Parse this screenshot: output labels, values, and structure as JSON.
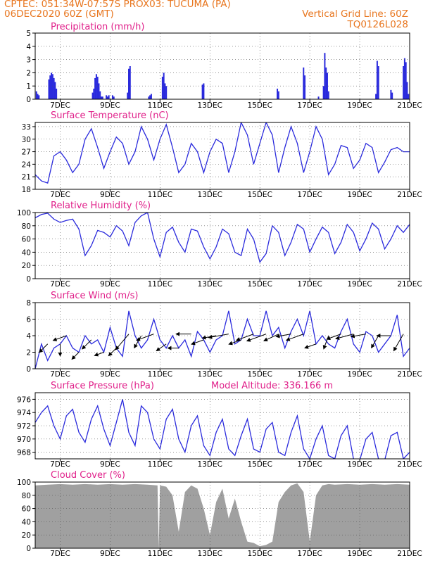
{
  "header": {
    "line1_left": "CPTEC:   051:34W-07:57S   PROX03: TUCUMA (PA)",
    "line2_left": "06DEC2020 60Z (GMT)",
    "line2_right": "Vertical Grid Line: 60Z",
    "line3_right": "TQ0126L028"
  },
  "colors": {
    "header": "#e8761f",
    "title": "#e0208a",
    "series": "#2a2add",
    "cloud": "#a0a0a0",
    "arrow": "#000000"
  },
  "x_axis": {
    "ticks": [
      "7DEC",
      "9DEC",
      "11DEC",
      "13DEC",
      "15DEC",
      "17DEC",
      "19DEC",
      "21DEC"
    ],
    "tick_days": [
      7,
      9,
      11,
      13,
      15,
      17,
      19,
      21
    ],
    "range_days": [
      6.0,
      21.0
    ]
  },
  "chart_data": [
    {
      "id": "precip",
      "type": "bar",
      "title": "Precipitation (mm/h)",
      "ylim": [
        0,
        5
      ],
      "yticks": [
        0,
        1,
        2,
        3,
        4,
        5
      ],
      "x": [
        6.05,
        6.1,
        6.15,
        6.55,
        6.6,
        6.65,
        6.7,
        6.75,
        6.8,
        6.85,
        8.3,
        8.35,
        8.4,
        8.45,
        8.5,
        8.55,
        8.6,
        8.65,
        8.7,
        8.85,
        8.9,
        8.95,
        9.1,
        9.15,
        9.7,
        9.75,
        9.8,
        10.55,
        10.6,
        10.65,
        11.1,
        11.15,
        11.2,
        11.25,
        12.7,
        12.75,
        15.7,
        15.75,
        16.75,
        16.8,
        17.35,
        17.55,
        17.6,
        17.65,
        17.7,
        17.75,
        19.65,
        19.7,
        19.75,
        20.25,
        20.3,
        20.75,
        20.8,
        20.85,
        20.9,
        20.95
      ],
      "values": [
        0.6,
        0.4,
        0.3,
        1.5,
        1.8,
        2.0,
        1.9,
        1.6,
        1.3,
        0.8,
        0.5,
        0.8,
        1.6,
        1.9,
        1.7,
        1.2,
        0.6,
        0.2,
        0.2,
        0.3,
        0.2,
        0.3,
        0.3,
        0.2,
        0.5,
        2.3,
        2.5,
        0.2,
        0.3,
        0.4,
        1.7,
        2.0,
        1.2,
        1.0,
        1.1,
        1.2,
        0.8,
        0.6,
        2.4,
        1.8,
        0.2,
        1.0,
        3.5,
        2.4,
        2.0,
        0.6,
        0.4,
        2.9,
        2.5,
        0.7,
        0.5,
        2.5,
        3.1,
        2.8,
        1.3,
        0.4
      ]
    },
    {
      "id": "temp",
      "type": "line",
      "title": "Surface Temperature (nC)",
      "ylim": [
        18,
        34
      ],
      "yticks": [
        18,
        21,
        24,
        27,
        30,
        33
      ],
      "x": [
        6.0,
        6.25,
        6.5,
        6.75,
        7.0,
        7.25,
        7.5,
        7.75,
        8.0,
        8.25,
        8.5,
        8.75,
        9.0,
        9.25,
        9.5,
        9.75,
        10.0,
        10.25,
        10.5,
        10.75,
        11.0,
        11.25,
        11.5,
        11.75,
        12.0,
        12.25,
        12.5,
        12.75,
        13.0,
        13.25,
        13.5,
        13.75,
        14.0,
        14.25,
        14.5,
        14.75,
        15.0,
        15.25,
        15.5,
        15.75,
        16.0,
        16.25,
        16.5,
        16.75,
        17.0,
        17.25,
        17.5,
        17.75,
        18.0,
        18.25,
        18.5,
        18.75,
        19.0,
        19.25,
        19.5,
        19.75,
        20.0,
        20.25,
        20.5,
        20.75,
        21.0
      ],
      "values": [
        21.5,
        20.0,
        19.5,
        26.0,
        27.0,
        25.0,
        22.0,
        24.0,
        30.0,
        32.5,
        28.0,
        23.0,
        27.0,
        30.5,
        29.0,
        24.0,
        27.0,
        33.0,
        30.0,
        25.0,
        30.0,
        33.5,
        28.0,
        22.0,
        24.0,
        29.0,
        27.0,
        22.0,
        27.0,
        30.0,
        29.0,
        22.0,
        27.0,
        34.0,
        31.0,
        24.0,
        29.0,
        34.0,
        31.0,
        22.0,
        28.0,
        33.0,
        29.0,
        22.0,
        27.0,
        33.0,
        30.0,
        21.5,
        24.0,
        28.5,
        28.0,
        23.0,
        25.0,
        29.0,
        28.0,
        22.0,
        24.5,
        27.5,
        28.0,
        27.0,
        27.0
      ]
    },
    {
      "id": "rh",
      "type": "line",
      "title": "Relative Humidity (%)",
      "ylim": [
        0,
        100
      ],
      "yticks": [
        0,
        20,
        40,
        60,
        80,
        100
      ],
      "x": [
        6.0,
        6.25,
        6.5,
        6.75,
        7.0,
        7.25,
        7.5,
        7.75,
        8.0,
        8.25,
        8.5,
        8.75,
        9.0,
        9.25,
        9.5,
        9.75,
        10.0,
        10.25,
        10.5,
        10.75,
        11.0,
        11.25,
        11.5,
        11.75,
        12.0,
        12.25,
        12.5,
        12.75,
        13.0,
        13.25,
        13.5,
        13.75,
        14.0,
        14.25,
        14.5,
        14.75,
        15.0,
        15.25,
        15.5,
        15.75,
        16.0,
        16.25,
        16.5,
        16.75,
        17.0,
        17.25,
        17.5,
        17.75,
        18.0,
        18.25,
        18.5,
        18.75,
        19.0,
        19.25,
        19.5,
        19.75,
        20.0,
        20.25,
        20.5,
        20.75,
        21.0
      ],
      "values": [
        92,
        97,
        99,
        90,
        85,
        88,
        90,
        75,
        35,
        50,
        73,
        70,
        63,
        80,
        72,
        50,
        85,
        95,
        100,
        60,
        33,
        70,
        78,
        55,
        40,
        75,
        72,
        48,
        30,
        48,
        75,
        68,
        40,
        35,
        75,
        60,
        25,
        38,
        80,
        70,
        35,
        55,
        82,
        75,
        40,
        60,
        78,
        70,
        38,
        55,
        82,
        70,
        42,
        60,
        84,
        75,
        45,
        60,
        80,
        70,
        82
      ]
    },
    {
      "id": "wind",
      "type": "line",
      "title": "Surface Wind (m/s)",
      "ylim": [
        0,
        8
      ],
      "yticks": [
        0,
        2,
        4,
        6,
        8
      ],
      "x": [
        6.0,
        6.25,
        6.5,
        6.75,
        7.0,
        7.25,
        7.5,
        7.75,
        8.0,
        8.25,
        8.5,
        8.75,
        9.0,
        9.25,
        9.5,
        9.75,
        10.0,
        10.25,
        10.5,
        10.75,
        11.0,
        11.25,
        11.5,
        11.75,
        12.0,
        12.25,
        12.5,
        12.75,
        13.0,
        13.25,
        13.5,
        13.75,
        14.0,
        14.25,
        14.5,
        14.75,
        15.0,
        15.25,
        15.5,
        15.75,
        16.0,
        16.25,
        16.5,
        16.75,
        17.0,
        17.25,
        17.5,
        17.75,
        18.0,
        18.25,
        18.5,
        18.75,
        19.0,
        19.25,
        19.5,
        19.75,
        20.0,
        20.25,
        20.5,
        20.75,
        21.0
      ],
      "values": [
        0.0,
        3.0,
        1.0,
        2.5,
        3.0,
        4.0,
        2.5,
        2.0,
        4.0,
        3.0,
        3.5,
        2.0,
        5.0,
        2.5,
        1.5,
        7.0,
        4.0,
        2.5,
        3.5,
        6.0,
        3.5,
        2.5,
        4.0,
        2.5,
        3.5,
        1.5,
        4.5,
        3.5,
        2.0,
        3.5,
        4.0,
        7.0,
        3.0,
        3.5,
        6.0,
        4.0,
        4.0,
        7.0,
        4.0,
        5.0,
        2.5,
        4.5,
        6.0,
        4.0,
        7.0,
        3.0,
        4.0,
        3.0,
        2.5,
        4.5,
        6.0,
        3.0,
        2.0,
        4.5,
        4.0,
        2.0,
        3.0,
        4.0,
        6.5,
        1.5,
        2.5
      ]
    },
    {
      "id": "pres",
      "type": "line",
      "title": "Surface Pressure (hPa)",
      "annotation": "Model Altitude: 336.166 m",
      "ylim": [
        967,
        977
      ],
      "yticks": [
        968,
        970,
        972,
        974,
        976
      ],
      "x": [
        6.0,
        6.25,
        6.5,
        6.75,
        7.0,
        7.25,
        7.5,
        7.75,
        8.0,
        8.25,
        8.5,
        8.75,
        9.0,
        9.25,
        9.5,
        9.75,
        10.0,
        10.25,
        10.5,
        10.75,
        11.0,
        11.25,
        11.5,
        11.75,
        12.0,
        12.25,
        12.5,
        12.75,
        13.0,
        13.25,
        13.5,
        13.75,
        14.0,
        14.25,
        14.5,
        14.75,
        15.0,
        15.25,
        15.5,
        15.75,
        16.0,
        16.25,
        16.5,
        16.75,
        17.0,
        17.25,
        17.5,
        17.75,
        18.0,
        18.25,
        18.5,
        18.75,
        19.0,
        19.25,
        19.5,
        19.75,
        20.0,
        20.25,
        20.5,
        20.75,
        21.0
      ],
      "values": [
        972.5,
        974.0,
        975.0,
        972.0,
        970.0,
        973.5,
        974.5,
        971.0,
        969.5,
        973.0,
        975.0,
        971.5,
        969.0,
        972.5,
        976.0,
        971.0,
        969.0,
        975.0,
        974.0,
        970.0,
        968.5,
        973.0,
        974.5,
        970.0,
        968.0,
        972.0,
        973.5,
        969.0,
        967.5,
        971.0,
        973.0,
        968.5,
        967.5,
        970.5,
        973.0,
        968.5,
        968.0,
        971.5,
        972.5,
        968.0,
        967.5,
        971.0,
        973.5,
        968.5,
        967.0,
        970.0,
        972.0,
        967.5,
        967.0,
        970.5,
        972.0,
        967.0,
        966.8,
        970.0,
        971.0,
        967.0,
        966.8,
        970.5,
        971.0,
        967.0,
        968.0
      ]
    },
    {
      "id": "cloud",
      "type": "area",
      "title": "Cloud Cover (%)",
      "ylim": [
        0,
        100
      ],
      "yticks": [
        0,
        20,
        40,
        60,
        80,
        100
      ],
      "x": [
        6.0,
        6.5,
        7.0,
        7.5,
        8.0,
        8.5,
        9.0,
        9.5,
        10.0,
        10.5,
        10.9,
        10.95,
        11.0,
        11.25,
        11.5,
        11.75,
        12.0,
        12.25,
        12.5,
        12.75,
        13.0,
        13.25,
        13.5,
        13.75,
        14.0,
        14.25,
        14.5,
        14.75,
        15.0,
        15.25,
        15.5,
        15.75,
        16.0,
        16.25,
        16.5,
        16.75,
        17.0,
        17.25,
        17.5,
        17.75,
        18.0,
        18.5,
        19.0,
        19.5,
        20.0,
        20.5,
        21.0
      ],
      "values": [
        95,
        96,
        97,
        96,
        97,
        96,
        97,
        96,
        97,
        96,
        95,
        0,
        95,
        93,
        80,
        25,
        85,
        95,
        90,
        60,
        20,
        70,
        90,
        45,
        75,
        40,
        10,
        8,
        3,
        5,
        10,
        70,
        85,
        95,
        98,
        85,
        10,
        80,
        95,
        97,
        96,
        97,
        96,
        97,
        96,
        97,
        96
      ]
    }
  ],
  "wind_arrows": {
    "x": [
      6.5,
      7.0,
      7.25,
      7.75,
      8.25,
      8.75,
      9.25,
      9.75,
      10.25,
      10.75,
      11.25,
      11.75,
      12.25,
      12.75,
      13.25,
      13.75,
      14.25,
      14.75,
      15.25,
      15.75,
      16.25,
      16.75,
      17.25,
      17.75,
      18.25,
      18.75,
      19.25,
      19.75,
      20.25,
      20.75
    ],
    "dir_deg": [
      225,
      270,
      200,
      225,
      225,
      200,
      225,
      230,
      240,
      200,
      215,
      180,
      180,
      200,
      190,
      190,
      200,
      200,
      200,
      205,
      190,
      200,
      200,
      250,
      200,
      195,
      190,
      240,
      180,
      240
    ],
    "speed": [
      3.0,
      3.0,
      4.0,
      2.0,
      3.5,
      2.0,
      2.5,
      7.0,
      4.0,
      6.0,
      3.0,
      2.5,
      4.5,
      3.5,
      4.0,
      7.0,
      3.5,
      6.0,
      7.0,
      5.0,
      4.5,
      6.0,
      3.0,
      4.0,
      4.5,
      6.0,
      4.5,
      4.0,
      4.0,
      6.5
    ]
  }
}
